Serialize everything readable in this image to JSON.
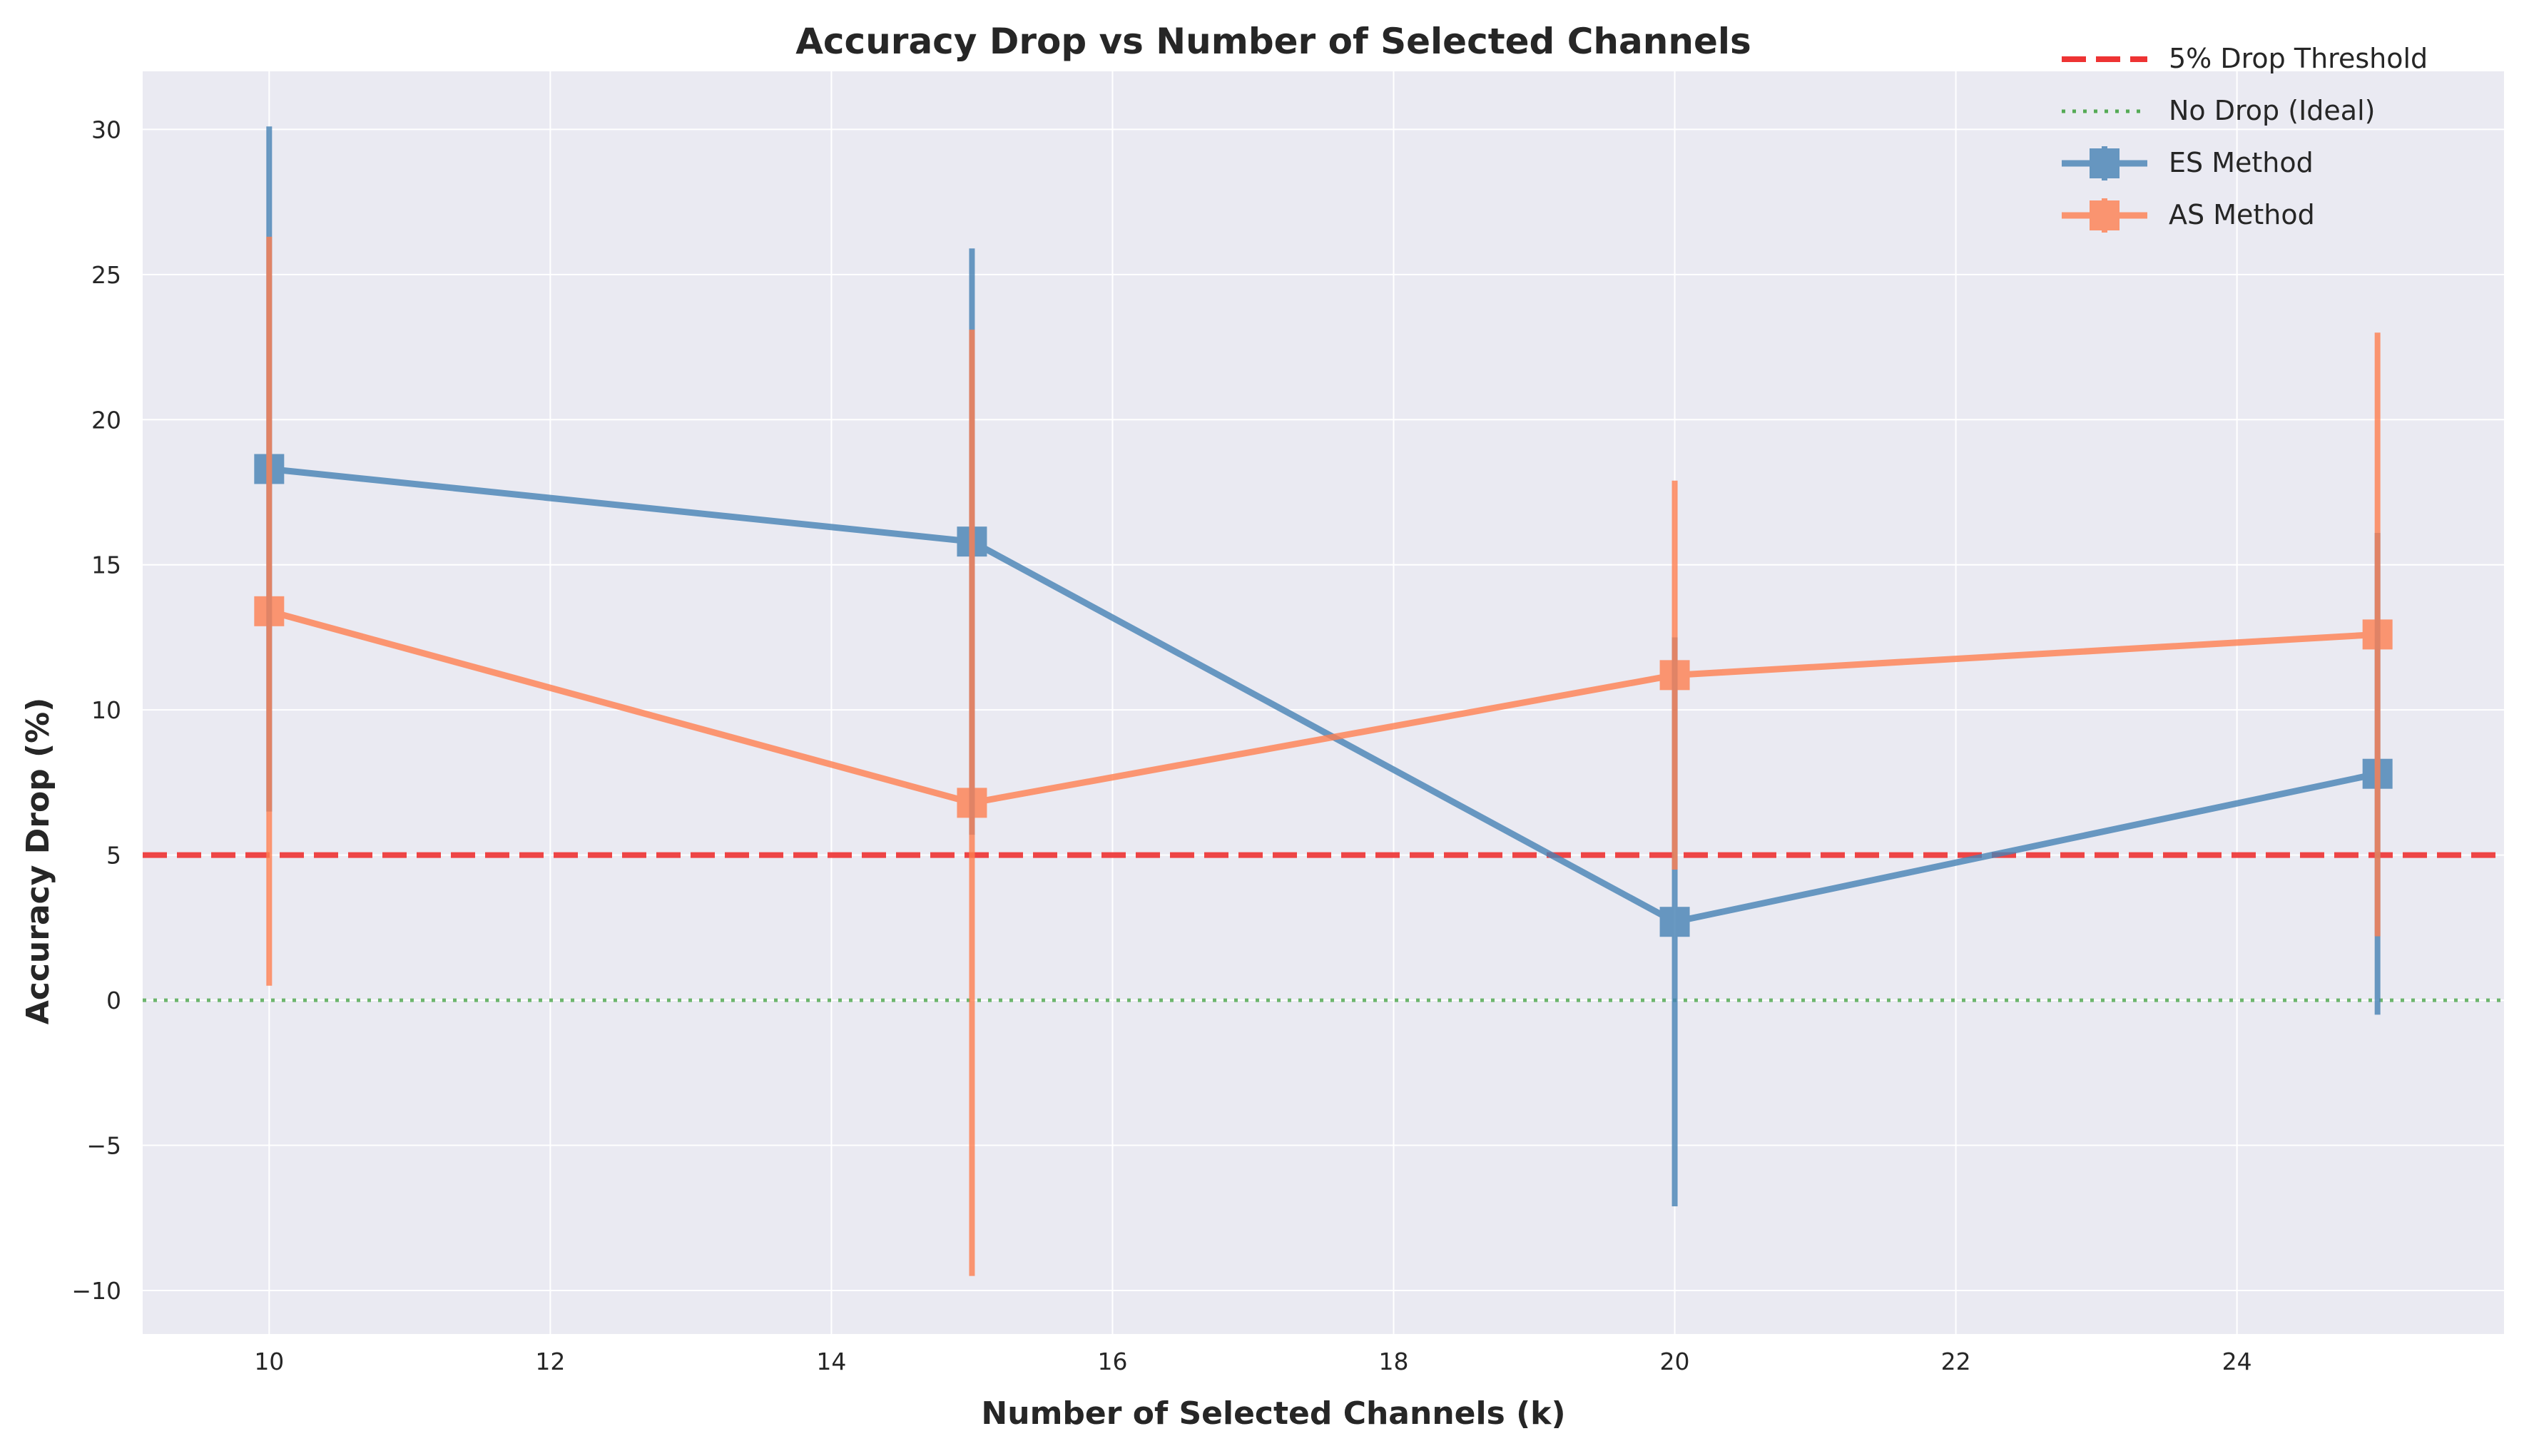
{
  "chart_data": {
    "type": "line",
    "title": "Accuracy Drop vs Number of Selected Channels",
    "xlabel": "Number of Selected Channels (k)",
    "ylabel": "Accuracy Drop (%)",
    "xlim": [
      9.1,
      25.9
    ],
    "ylim": [
      -11.5,
      32.0
    ],
    "xticks": [
      10,
      12,
      14,
      16,
      18,
      20,
      22,
      24
    ],
    "yticks": [
      -10,
      -5,
      0,
      5,
      10,
      15,
      20,
      25,
      30
    ],
    "grid": true,
    "legend_position": "top-right",
    "series": [
      {
        "name": "ES Method",
        "color": "#4682B4",
        "marker": "square",
        "x": [
          10,
          15,
          20,
          25
        ],
        "y": [
          18.3,
          15.8,
          2.7,
          7.8
        ],
        "error": [
          11.8,
          10.1,
          9.8,
          8.3
        ]
      },
      {
        "name": "AS Method",
        "color": "#FF7F50",
        "marker": "square",
        "x": [
          10,
          15,
          20,
          25
        ],
        "y": [
          13.4,
          6.8,
          11.2,
          12.6
        ],
        "error": [
          12.9,
          16.3,
          6.7,
          10.4
        ]
      }
    ],
    "reference_lines": [
      {
        "name": "5% Drop Threshold",
        "y": 5,
        "color": "#EE3333",
        "style": "dashed"
      },
      {
        "name": "No Drop (Ideal)",
        "y": 0,
        "color": "#55AA55",
        "style": "dotted"
      }
    ]
  }
}
